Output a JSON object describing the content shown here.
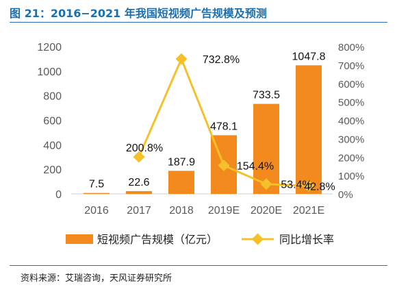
{
  "title": "图 21：2016−2021 年我国短视频广告规模及预测",
  "source": "资料来源：艾瑞咨询，天风证券研究所",
  "colors": {
    "bar": "#f28a1e",
    "line": "#f5c028",
    "title": "#1a6fb0",
    "rule": "#2a6db5"
  },
  "chart_data": {
    "type": "bar+line",
    "categories": [
      "2016",
      "2017",
      "2018",
      "2019E",
      "2020E",
      "2021E"
    ],
    "series": [
      {
        "name": "短视频广告规模（亿元）",
        "type": "bar",
        "axis": "left",
        "values": [
          7.5,
          22.6,
          187.9,
          478.1,
          733.5,
          1047.8
        ],
        "labels": [
          "7.5",
          "22.6",
          "187.9",
          "478.1",
          "733.5",
          "1047.8"
        ]
      },
      {
        "name": "同比增长率",
        "type": "line",
        "axis": "right",
        "values": [
          null,
          200.8,
          732.8,
          154.4,
          53.4,
          42.8
        ],
        "labels": [
          "",
          "200.8%",
          "732.8%",
          "154.4%",
          "53.4%",
          "42.8%"
        ]
      }
    ],
    "ylim_left": [
      0,
      1200
    ],
    "yticks_left": [
      "0",
      "200",
      "400",
      "600",
      "800",
      "1000",
      "1200"
    ],
    "ylim_right": [
      0,
      800
    ],
    "yticks_right": [
      "0%",
      "100%",
      "200%",
      "300%",
      "400%",
      "500%",
      "600%",
      "700%",
      "800%"
    ],
    "legend_position": "bottom",
    "grid": false
  }
}
